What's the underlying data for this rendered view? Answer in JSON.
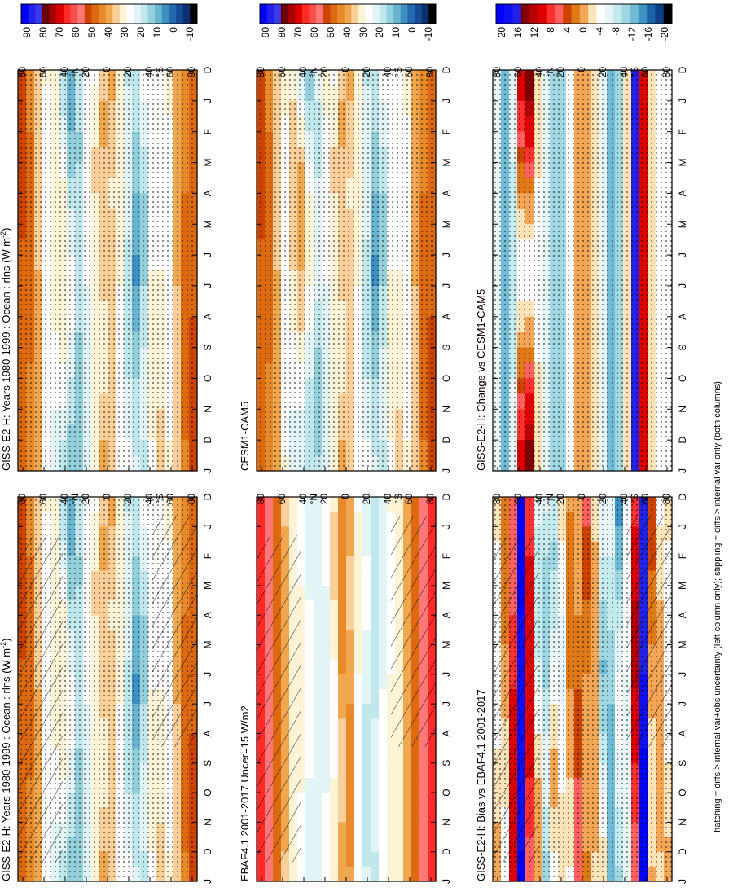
{
  "footnote": "hatching = diffs > internal var+obs uncertainty (left column only); stippling = diffs > internal var only (both columns)",
  "chart_data": [
    {
      "type": "heatmap",
      "title": "GISS-E2-H: Years 1980-1999 : Ocean : rlns (W m",
      "title_sup": "-2",
      "title_close": ")",
      "months": [
        "D",
        "J",
        "F",
        "M",
        "A",
        "M",
        "J",
        "J",
        "A",
        "S",
        "O",
        "N",
        "D",
        "J"
      ],
      "lat_labels": [
        "80",
        "60",
        "40",
        "20",
        "0",
        "20",
        "40",
        "60",
        "80"
      ],
      "lat_unit": "°N",
      "lat_unit_s": "°S",
      "colorbar_ticks": [
        "90",
        "80",
        "70",
        "60",
        "50",
        "40",
        "30",
        "20",
        "10",
        "0",
        "-10"
      ],
      "colorbar_range": [
        -15,
        95
      ],
      "hatched": true,
      "stippled": true,
      "pattern": "mean"
    },
    {
      "type": "heatmap",
      "title": "GISS-E2-H: Years 1980-1999 : Ocean : rlns (W m",
      "title_sup": "-2",
      "title_close": ")",
      "months": [
        "D",
        "J",
        "F",
        "M",
        "A",
        "M",
        "J",
        "J",
        "A",
        "S",
        "O",
        "N",
        "D",
        "J"
      ],
      "lat_labels": [
        "80",
        "60",
        "40",
        "20",
        "0",
        "20",
        "40",
        "60",
        "80"
      ],
      "lat_unit": "°N",
      "lat_unit_s": "°S",
      "colorbar_ticks": [
        "90",
        "80",
        "70",
        "60",
        "50",
        "40",
        "30",
        "20",
        "10",
        "0",
        "-10"
      ],
      "colorbar_range": [
        -15,
        95
      ],
      "hatched": false,
      "stippled": true,
      "pattern": "mean"
    },
    {
      "type": "heatmap",
      "title": "EBAF4.1 2001-2017 Uncer=15 W/m2",
      "months": [
        "D",
        "J",
        "F",
        "M",
        "A",
        "M",
        "J",
        "J",
        "A",
        "S",
        "O",
        "N",
        "D",
        "J"
      ],
      "lat_labels": [
        "80",
        "60",
        "40",
        "20",
        "0",
        "20",
        "40",
        "60",
        "80"
      ],
      "lat_unit": "°N",
      "lat_unit_s": "°S",
      "colorbar_ticks": [
        "90",
        "80",
        "70",
        "60",
        "50",
        "40",
        "30",
        "20",
        "10",
        "0",
        "-10"
      ],
      "colorbar_range": [
        -15,
        95
      ],
      "hatched": true,
      "stippled": false,
      "pattern": "obs"
    },
    {
      "type": "heatmap",
      "title": "CESM1-CAM5",
      "months": [
        "D",
        "J",
        "F",
        "M",
        "A",
        "M",
        "J",
        "J",
        "A",
        "S",
        "O",
        "N",
        "D",
        "J"
      ],
      "lat_labels": [
        "80",
        "60",
        "40",
        "20",
        "0",
        "20",
        "40",
        "60",
        "80"
      ],
      "lat_unit": "°N",
      "lat_unit_s": "°S",
      "colorbar_ticks": [
        "90",
        "80",
        "70",
        "60",
        "50",
        "40",
        "30",
        "20",
        "10",
        "0",
        "-10"
      ],
      "colorbar_range": [
        -15,
        95
      ],
      "hatched": false,
      "stippled": true,
      "pattern": "cesm"
    },
    {
      "type": "heatmap",
      "title": "GISS-E2-H: Bias vs EBAF4.1 2001-2017",
      "months": [
        "D",
        "J",
        "F",
        "M",
        "A",
        "M",
        "J",
        "J",
        "A",
        "S",
        "O",
        "N",
        "D",
        "J"
      ],
      "lat_labels": [
        "80",
        "60",
        "40",
        "20",
        "0",
        "20",
        "40",
        "60",
        "80"
      ],
      "lat_unit": "°N",
      "lat_unit_s": "°S",
      "colorbar_ticks": [
        "20",
        "16",
        "12",
        "8",
        "4",
        "0",
        "-4",
        "-8",
        "-12",
        "-16",
        "-20"
      ],
      "colorbar_range": [
        -22,
        22
      ],
      "hatched": true,
      "stippled": true,
      "pattern": "bias"
    },
    {
      "type": "heatmap",
      "title": "GISS-E2-H: Change vs CESM1-CAM5",
      "months": [
        "D",
        "J",
        "F",
        "M",
        "A",
        "M",
        "J",
        "J",
        "A",
        "S",
        "O",
        "N",
        "D",
        "J"
      ],
      "lat_labels": [
        "80",
        "60",
        "40",
        "20",
        "0",
        "20",
        "40",
        "60",
        "80"
      ],
      "lat_unit": "°N",
      "lat_unit_s": "°S",
      "colorbar_ticks": [
        "20",
        "16",
        "12",
        "8",
        "4",
        "0",
        "-4",
        "-8",
        "-12",
        "-16",
        "-20"
      ],
      "colorbar_range": [
        -22,
        22
      ],
      "hatched": false,
      "stippled": true,
      "pattern": "change"
    }
  ]
}
